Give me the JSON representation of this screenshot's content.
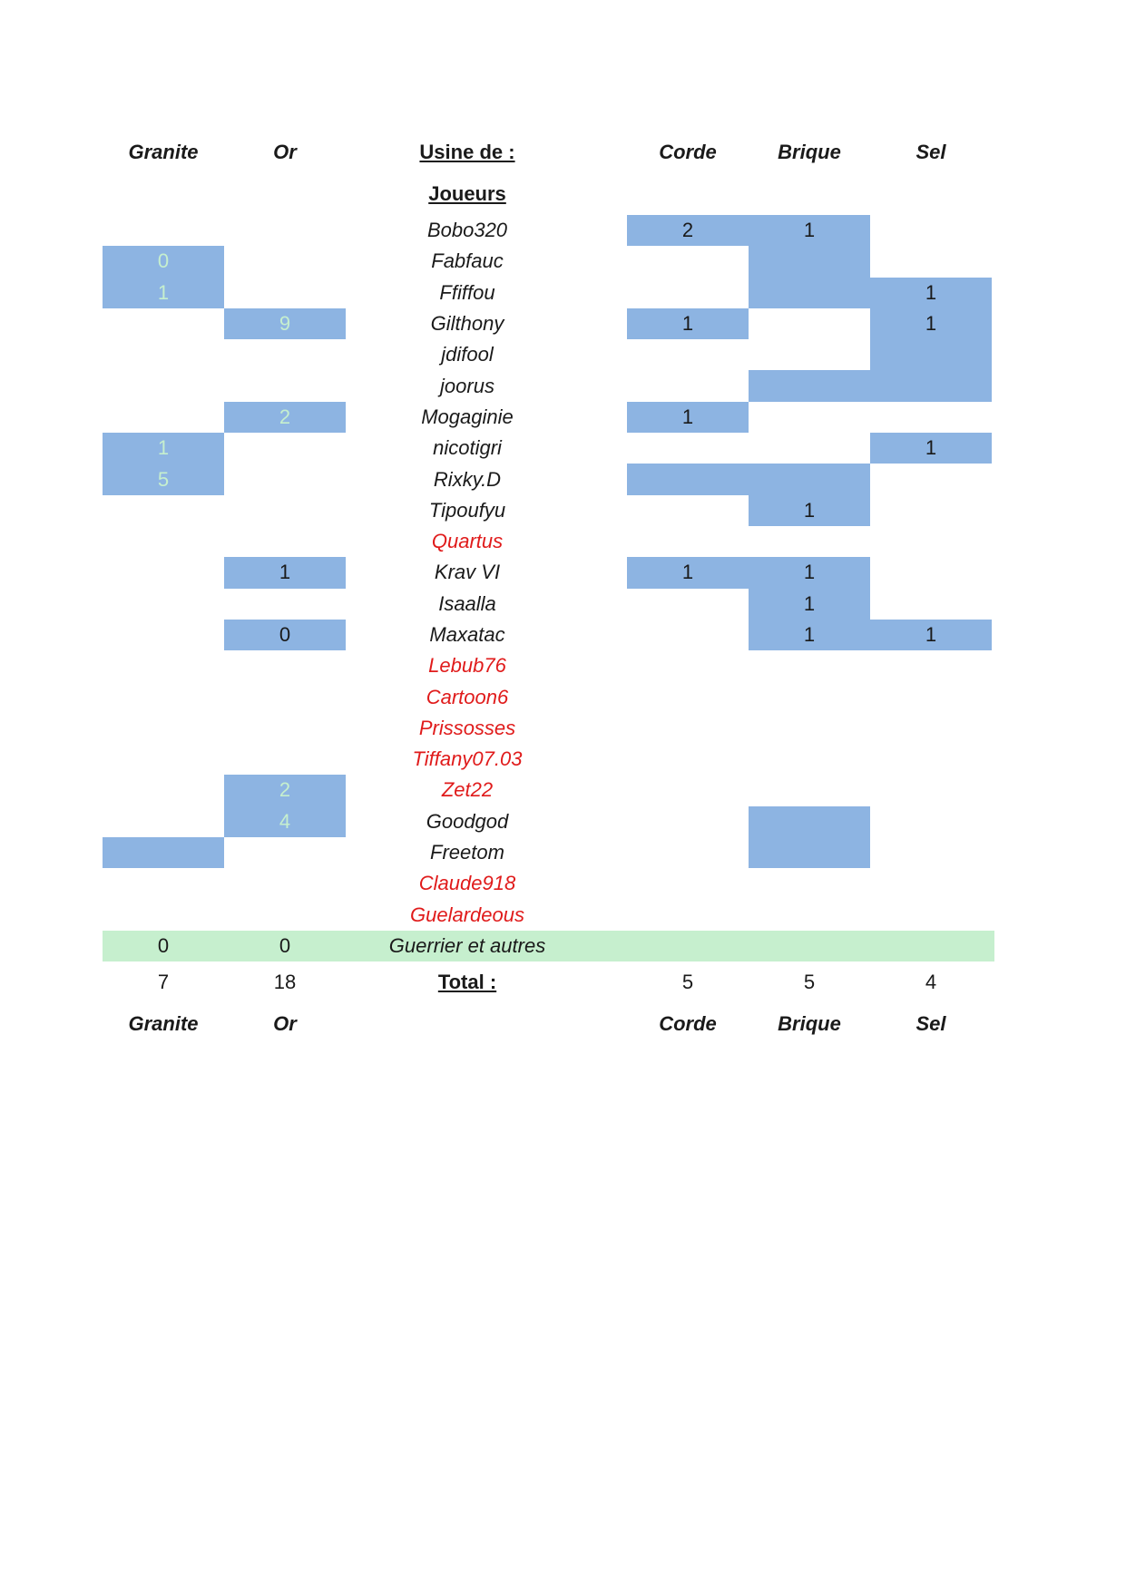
{
  "headers": {
    "granite": "Granite",
    "or": "Or",
    "usine": "Usine de :",
    "joueurs": "Joueurs",
    "corde": "Corde",
    "brique": "Brique",
    "sel": "Sel"
  },
  "rows": [
    {
      "name": "Bobo320",
      "red": false,
      "granite": "",
      "or": "",
      "corde": "2",
      "brique": "1",
      "sel": "",
      "hl": [
        0,
        0,
        1,
        1,
        0
      ]
    },
    {
      "name": "Fabfauc",
      "red": false,
      "granite": "0",
      "or": "",
      "corde": "",
      "brique": "",
      "sel": "",
      "hl": [
        1,
        0,
        0,
        1,
        0
      ],
      "light": [
        1,
        0
      ]
    },
    {
      "name": "Ffiffou",
      "red": false,
      "granite": "1",
      "or": "",
      "corde": "",
      "brique": "",
      "sel": "1",
      "hl": [
        1,
        0,
        0,
        1,
        1
      ],
      "light": [
        1,
        0
      ]
    },
    {
      "name": "Gilthony",
      "red": false,
      "granite": "",
      "or": "9",
      "corde": "1",
      "brique": "",
      "sel": "1",
      "hl": [
        0,
        1,
        1,
        0,
        1
      ],
      "light": [
        0,
        1
      ]
    },
    {
      "name": "jdifool",
      "red": false,
      "granite": "",
      "or": "",
      "corde": "",
      "brique": "",
      "sel": "",
      "hl": [
        0,
        0,
        0,
        0,
        1
      ]
    },
    {
      "name": "joorus",
      "red": false,
      "granite": "",
      "or": "",
      "corde": "",
      "brique": "",
      "sel": "",
      "hl": [
        0,
        0,
        0,
        1,
        1
      ]
    },
    {
      "name": "Mogaginie",
      "red": false,
      "granite": "",
      "or": "2",
      "corde": "1",
      "brique": "",
      "sel": "",
      "hl": [
        0,
        1,
        1,
        0,
        0
      ],
      "light": [
        0,
        1
      ]
    },
    {
      "name": "nicotigri",
      "red": false,
      "granite": "1",
      "or": "",
      "corde": "",
      "brique": "",
      "sel": "1",
      "hl": [
        1,
        0,
        0,
        0,
        1
      ],
      "light": [
        1,
        0
      ]
    },
    {
      "name": "Rixky.D",
      "red": false,
      "granite": "5",
      "or": "",
      "corde": "",
      "brique": "",
      "sel": "",
      "hl": [
        1,
        0,
        1,
        1,
        0
      ],
      "light": [
        1,
        0
      ]
    },
    {
      "name": "Tipoufyu",
      "red": false,
      "granite": "",
      "or": "",
      "corde": "",
      "brique": "1",
      "sel": "",
      "hl": [
        0,
        0,
        0,
        1,
        0
      ]
    },
    {
      "name": "Quartus",
      "red": true,
      "granite": "",
      "or": "",
      "corde": "",
      "brique": "",
      "sel": "",
      "hl": [
        0,
        0,
        0,
        0,
        0
      ]
    },
    {
      "name": "Krav VI",
      "red": false,
      "granite": "",
      "or": "1",
      "corde": "1",
      "brique": "1",
      "sel": "",
      "hl": [
        0,
        1,
        1,
        1,
        0
      ]
    },
    {
      "name": "Isaalla",
      "red": false,
      "granite": "",
      "or": "",
      "corde": "",
      "brique": "1",
      "sel": "",
      "hl": [
        0,
        0,
        0,
        1,
        0
      ]
    },
    {
      "name": "Maxatac",
      "red": false,
      "granite": "",
      "or": "0",
      "corde": "",
      "brique": "1",
      "sel": "1",
      "hl": [
        0,
        1,
        0,
        1,
        1
      ]
    },
    {
      "name": "Lebub76",
      "red": true,
      "granite": "",
      "or": "",
      "corde": "",
      "brique": "",
      "sel": "",
      "hl": [
        0,
        0,
        0,
        0,
        0
      ]
    },
    {
      "name": "Cartoon6",
      "red": true,
      "granite": "",
      "or": "",
      "corde": "",
      "brique": "",
      "sel": "",
      "hl": [
        0,
        0,
        0,
        0,
        0
      ]
    },
    {
      "name": "Prissosses",
      "red": true,
      "granite": "",
      "or": "",
      "corde": "",
      "brique": "",
      "sel": "",
      "hl": [
        0,
        0,
        0,
        0,
        0
      ]
    },
    {
      "name": "Tiffany07.03",
      "red": true,
      "granite": "",
      "or": "",
      "corde": "",
      "brique": "",
      "sel": "",
      "hl": [
        0,
        0,
        0,
        0,
        0
      ]
    },
    {
      "name": "Zet22",
      "red": true,
      "granite": "",
      "or": "2",
      "corde": "",
      "brique": "",
      "sel": "",
      "hl": [
        0,
        1,
        0,
        0,
        0
      ],
      "light": [
        0,
        1
      ]
    },
    {
      "name": "Goodgod",
      "red": false,
      "granite": "",
      "or": "4",
      "corde": "",
      "brique": "",
      "sel": "",
      "hl": [
        0,
        1,
        0,
        1,
        0
      ],
      "light": [
        0,
        1
      ]
    },
    {
      "name": "Freetom",
      "red": false,
      "granite": "",
      "or": "",
      "corde": "",
      "brique": "",
      "sel": "",
      "hl": [
        1,
        0,
        0,
        1,
        0
      ]
    },
    {
      "name": "Claude918",
      "red": true,
      "granite": "",
      "or": "",
      "corde": "",
      "brique": "",
      "sel": "",
      "hl": [
        0,
        0,
        0,
        0,
        0
      ]
    },
    {
      "name": "Guelardeous",
      "red": true,
      "granite": "",
      "or": "",
      "corde": "",
      "brique": "",
      "sel": "",
      "hl": [
        0,
        0,
        0,
        0,
        0
      ]
    }
  ],
  "guerrier": {
    "label": "Guerrier et autres",
    "granite": "0",
    "or": "0"
  },
  "total": {
    "label": "Total :",
    "granite": "7",
    "or": "18",
    "corde": "5",
    "brique": "5",
    "sel": "4"
  }
}
